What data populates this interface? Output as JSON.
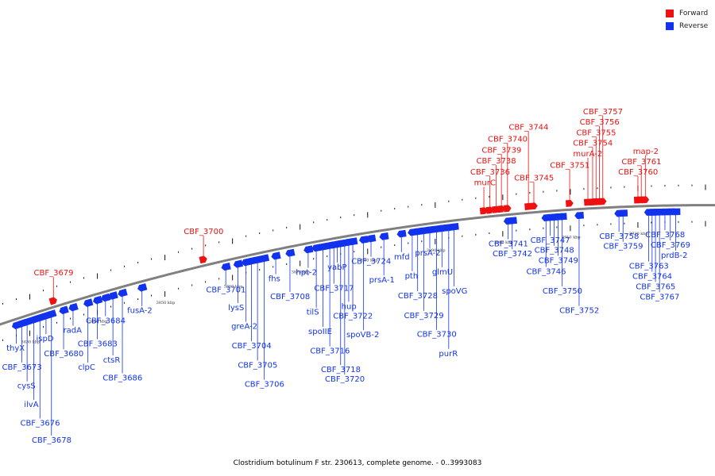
{
  "colors": {
    "forward": "#ee1111",
    "reverse": "#1133ee",
    "backbone": "#808080",
    "tick": "#111111"
  },
  "legend": {
    "forward_label": "Forward",
    "reverse_label": "Reverse"
  },
  "caption": "Clostridium botulinum F str. 230613, complete genome. - 0..3993083",
  "scale": {
    "unit": "kbp",
    "marks": [
      {
        "label": "3830 kbp",
        "pos_kbp": 3830
      },
      {
        "label": "3840 kbp",
        "pos_kbp": 3840
      },
      {
        "label": "3850 kbp",
        "pos_kbp": 3850
      },
      {
        "label": "3860 kbp",
        "pos_kbp": 3860
      },
      {
        "label": "3870 kbp",
        "pos_kbp": 3870
      },
      {
        "label": "3880 kbp",
        "pos_kbp": 3880
      },
      {
        "label": "3890 kbp",
        "pos_kbp": 3890
      },
      {
        "label": "3900 kbp",
        "pos_kbp": 3900
      },
      {
        "label": "3910 kbp",
        "pos_kbp": 3910
      },
      {
        "label": "3920 kbp",
        "pos_kbp": 3920
      }
    ]
  },
  "forward_genes": [
    {
      "name": "CBF_3679",
      "pos_kbp": 3833.5
    },
    {
      "name": "CBF_3700",
      "pos_kbp": 3855.7
    },
    {
      "name": "murC",
      "pos_kbp": 3897.2
    },
    {
      "name": "CBF_3736",
      "pos_kbp": 3898.1
    },
    {
      "name": "CBF_3738",
      "pos_kbp": 3899.0
    },
    {
      "name": "CBF_3739",
      "pos_kbp": 3899.8
    },
    {
      "name": "CBF_3740",
      "pos_kbp": 3900.7
    },
    {
      "name": "CBF_3744",
      "pos_kbp": 3903.8
    },
    {
      "name": "CBF_3745",
      "pos_kbp": 3904.6
    },
    {
      "name": "CBF_3751",
      "pos_kbp": 3909.9
    },
    {
      "name": "murA-2",
      "pos_kbp": 3912.6
    },
    {
      "name": "CBF_3754",
      "pos_kbp": 3913.3
    },
    {
      "name": "CBF_3755",
      "pos_kbp": 3913.8
    },
    {
      "name": "CBF_3756",
      "pos_kbp": 3914.3
    },
    {
      "name": "CBF_3757",
      "pos_kbp": 3914.8
    },
    {
      "name": "CBF_3760",
      "pos_kbp": 3920.0
    },
    {
      "name": "CBF_3761",
      "pos_kbp": 3920.5
    },
    {
      "name": "map-2",
      "pos_kbp": 3921.1
    }
  ],
  "reverse_genes": [
    {
      "name": "thyX",
      "pos_kbp": 3828.0
    },
    {
      "name": "CBF_3673",
      "pos_kbp": 3828.8
    },
    {
      "name": "cysS",
      "pos_kbp": 3829.6
    },
    {
      "name": "ilvA",
      "pos_kbp": 3830.6
    },
    {
      "name": "CBF_3676",
      "pos_kbp": 3831.5
    },
    {
      "name": "ispD",
      "pos_kbp": 3832.4
    },
    {
      "name": "CBF_3678",
      "pos_kbp": 3833.2
    },
    {
      "name": "CBF_3680",
      "pos_kbp": 3835.0
    },
    {
      "name": "radA",
      "pos_kbp": 3836.4
    },
    {
      "name": "clpC",
      "pos_kbp": 3838.6
    },
    {
      "name": "CBF_3683",
      "pos_kbp": 3840.0
    },
    {
      "name": "CBF_3684",
      "pos_kbp": 3841.2
    },
    {
      "name": "ctsR",
      "pos_kbp": 3842.3
    },
    {
      "name": "CBF_3686",
      "pos_kbp": 3843.7
    },
    {
      "name": "fusA-2",
      "pos_kbp": 3846.6
    },
    {
      "name": "CBF_3701",
      "pos_kbp": 3859.0
    },
    {
      "name": "lysS",
      "pos_kbp": 3860.8
    },
    {
      "name": "greA-2",
      "pos_kbp": 3862.0
    },
    {
      "name": "CBF_3704",
      "pos_kbp": 3862.8
    },
    {
      "name": "CBF_3705",
      "pos_kbp": 3863.7
    },
    {
      "name": "CBF_3706",
      "pos_kbp": 3864.7
    },
    {
      "name": "fhs",
      "pos_kbp": 3866.4
    },
    {
      "name": "CBF_3708",
      "pos_kbp": 3868.5
    },
    {
      "name": "hpt-2",
      "pos_kbp": 3871.2
    },
    {
      "name": "tilS",
      "pos_kbp": 3872.4
    },
    {
      "name": "spoIIE",
      "pos_kbp": 3873.4
    },
    {
      "name": "CBF_3716",
      "pos_kbp": 3874.4
    },
    {
      "name": "CBF_3717",
      "pos_kbp": 3875.0
    },
    {
      "name": "yabP",
      "pos_kbp": 3875.5
    },
    {
      "name": "CBF_3718",
      "pos_kbp": 3876.0
    },
    {
      "name": "CBF_3720",
      "pos_kbp": 3876.6
    },
    {
      "name": "hup",
      "pos_kbp": 3877.2
    },
    {
      "name": "CBF_3722",
      "pos_kbp": 3877.8
    },
    {
      "name": "spoVB-2",
      "pos_kbp": 3879.4
    },
    {
      "name": "CBF_3724",
      "pos_kbp": 3880.5
    },
    {
      "name": "prsA-1",
      "pos_kbp": 3882.4
    },
    {
      "name": "mfd",
      "pos_kbp": 3885.0
    },
    {
      "name": "pth",
      "pos_kbp": 3886.6
    },
    {
      "name": "CBF_3728",
      "pos_kbp": 3887.4
    },
    {
      "name": "CBF_3729",
      "pos_kbp": 3888.3
    },
    {
      "name": "prsA-2",
      "pos_kbp": 3889.2
    },
    {
      "name": "CBF_3730",
      "pos_kbp": 3890.2
    },
    {
      "name": "glmU",
      "pos_kbp": 3891.0
    },
    {
      "name": "purR",
      "pos_kbp": 3892.0
    },
    {
      "name": "spoVG",
      "pos_kbp": 3892.8
    },
    {
      "name": "CBF_3741",
      "pos_kbp": 3900.8
    },
    {
      "name": "CBF_3742",
      "pos_kbp": 3901.4
    },
    {
      "name": "CBF_3746",
      "pos_kbp": 3906.4
    },
    {
      "name": "CBF_3747",
      "pos_kbp": 3907.0
    },
    {
      "name": "CBF_3748",
      "pos_kbp": 3907.6
    },
    {
      "name": "CBF_3749",
      "pos_kbp": 3908.2
    },
    {
      "name": "CBF_3750",
      "pos_kbp": 3908.8
    },
    {
      "name": "CBF_3752",
      "pos_kbp": 3911.3
    },
    {
      "name": "CBF_3758",
      "pos_kbp": 3917.2
    },
    {
      "name": "CBF_3759",
      "pos_kbp": 3917.8
    },
    {
      "name": "CBF_3763",
      "pos_kbp": 3921.6
    },
    {
      "name": "CBF_3764",
      "pos_kbp": 3922.1
    },
    {
      "name": "CBF_3765",
      "pos_kbp": 3922.6
    },
    {
      "name": "CBF_3767",
      "pos_kbp": 3923.2
    },
    {
      "name": "CBF_3768",
      "pos_kbp": 3924.0
    },
    {
      "name": "CBF_3769",
      "pos_kbp": 3924.8
    },
    {
      "name": "prdB-2",
      "pos_kbp": 3925.6
    }
  ]
}
